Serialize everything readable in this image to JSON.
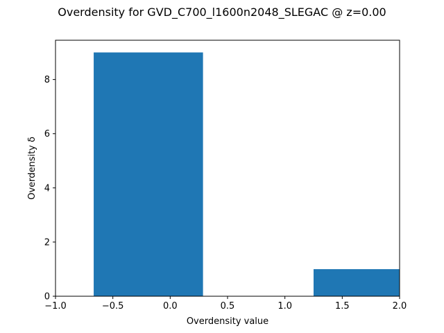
{
  "chart_data": {
    "type": "bar",
    "title": "Overdensity for GVD_C700_l1600n2048_SLEGAC @ z=0.00",
    "xlabel": "Overdensity value",
    "ylabel": "Overdensity δ",
    "xlim": [
      -1.0,
      2.0
    ],
    "ylim": [
      0,
      9.45
    ],
    "xticks": [
      "−1.0",
      "−0.5",
      "0.0",
      "0.5",
      "1.0",
      "1.5",
      "2.0"
    ],
    "xtick_values": [
      -1.0,
      -0.5,
      0.0,
      0.5,
      1.0,
      1.5,
      2.0
    ],
    "yticks": [
      "0",
      "2",
      "4",
      "6",
      "8"
    ],
    "ytick_values": [
      0,
      2,
      4,
      6,
      8
    ],
    "bars": [
      {
        "x_start": -0.667,
        "x_end": 0.286,
        "value": 9
      },
      {
        "x_start": 1.25,
        "x_end": 2.2,
        "value": 1
      }
    ],
    "bar_color": "#1f77b4",
    "grid": false
  }
}
